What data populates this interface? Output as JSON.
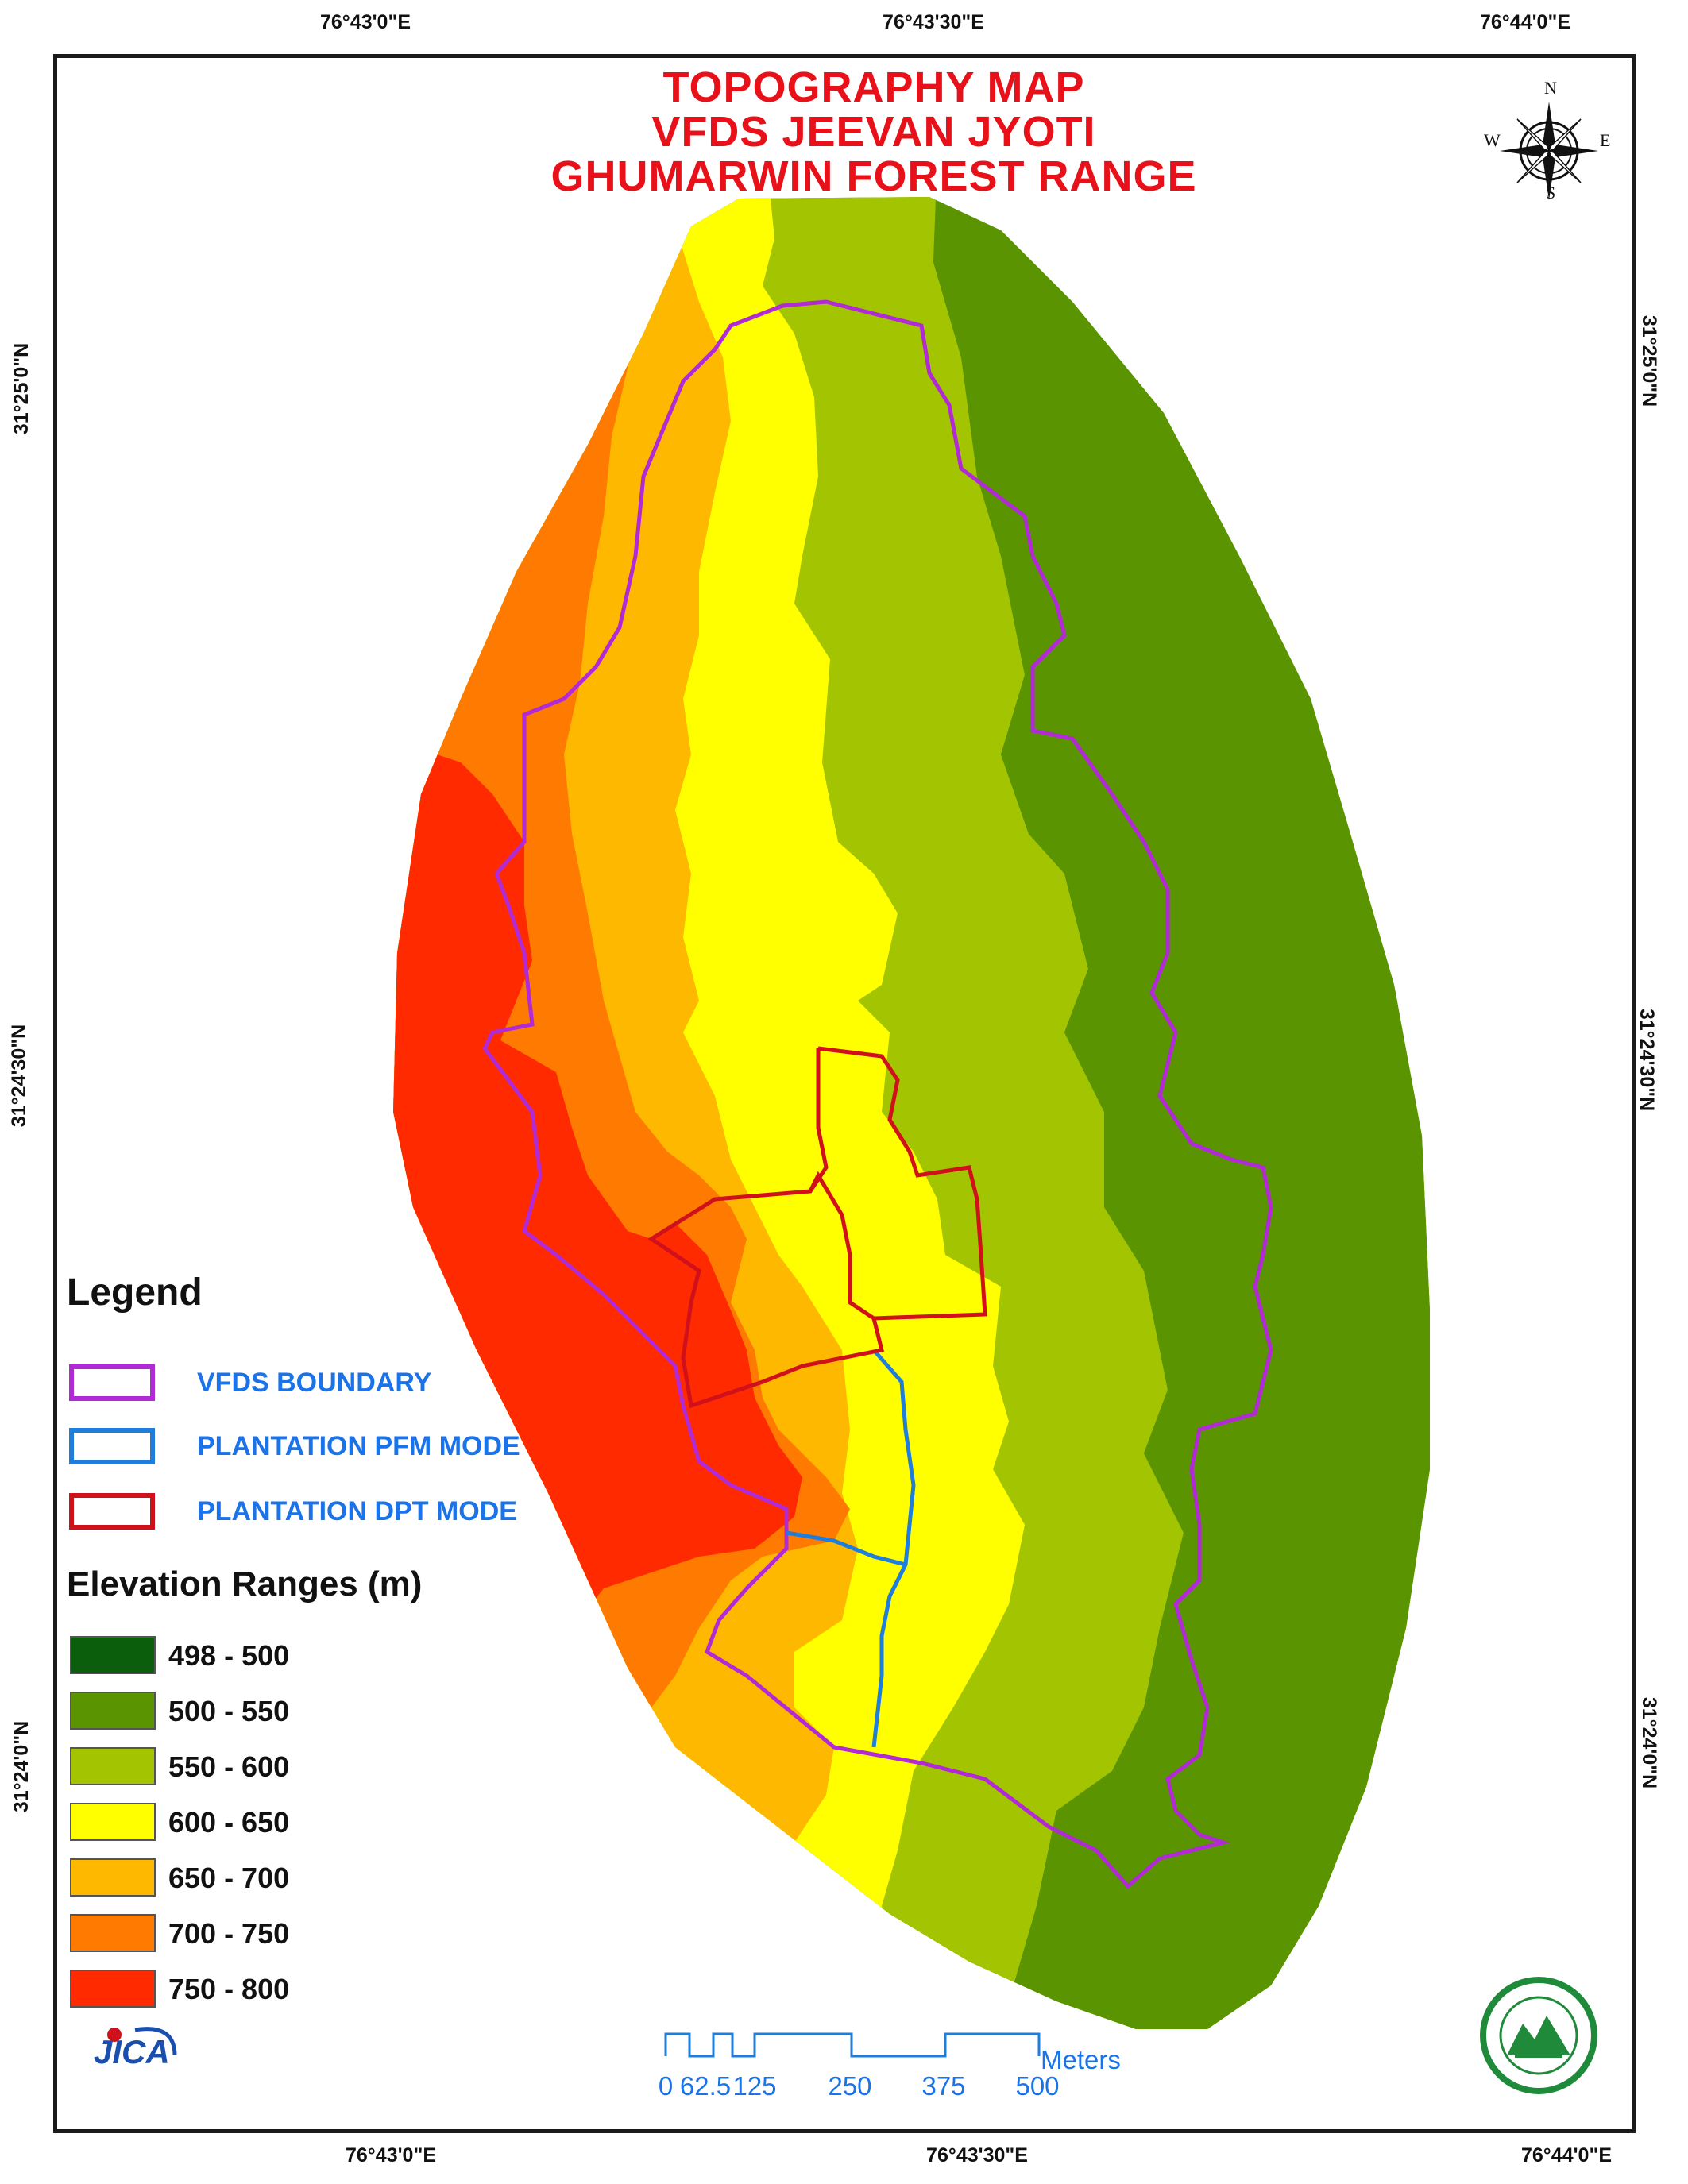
{
  "title": {
    "line1": "TOPOGRAPHY MAP",
    "line2": "VFDS JEEVAN JYOTI",
    "line3": "GHUMARWIN FOREST RANGE"
  },
  "graticule": {
    "top": [
      "76°43'0\"E",
      "76°43'30\"E",
      "76°44'0\"E"
    ],
    "bottom": [
      "76°43'0\"E",
      "76°43'30\"E",
      "76°44'0\"E"
    ],
    "left": [
      "31°25'0\"N",
      "31°24'30\"N",
      "31°24'0\"N"
    ],
    "right": [
      "31°25'0\"N",
      "31°24'30\"N",
      "31°24'0\"N"
    ]
  },
  "compass": {
    "n": "N",
    "s": "S",
    "e": "E",
    "w": "W"
  },
  "legend": {
    "title": "Legend",
    "items": [
      {
        "label": "VFDS BOUNDARY",
        "color": "#b12ad6"
      },
      {
        "label": "PLANTATION PFM MODE",
        "color": "#1f7ddb"
      },
      {
        "label": "PLANTATION DPT MODE",
        "color": "#d0111b"
      }
    ]
  },
  "elevation": {
    "title": "Elevation Ranges (m)",
    "classes": [
      {
        "label": "498 - 500",
        "color": "#0b5e0b"
      },
      {
        "label": "500 - 550",
        "color": "#5a9400"
      },
      {
        "label": "550 - 600",
        "color": "#a3c400"
      },
      {
        "label": "600 - 650",
        "color": "#ffff00"
      },
      {
        "label": "650 - 700",
        "color": "#ffb800"
      },
      {
        "label": "700 - 750",
        "color": "#ff7a00"
      },
      {
        "label": "750 - 800",
        "color": "#ff2a00"
      }
    ]
  },
  "scale_bar": {
    "ticks": [
      "0",
      "62.5",
      "125",
      "250",
      "375",
      "500"
    ],
    "unit": "Meters"
  },
  "logos": {
    "partner": "JICA"
  }
}
